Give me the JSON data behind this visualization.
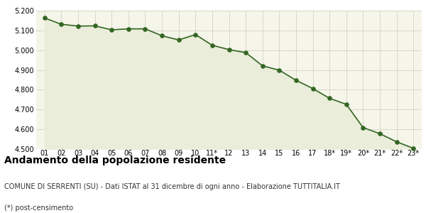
{
  "x_labels": [
    "01",
    "02",
    "03",
    "04",
    "05",
    "06",
    "07",
    "08",
    "09",
    "10",
    "11*",
    "12",
    "13",
    "14",
    "15",
    "16",
    "17",
    "18*",
    "19*",
    "20*",
    "21*",
    "22*",
    "23*"
  ],
  "values": [
    5163,
    5131,
    5122,
    5123,
    5103,
    5108,
    5108,
    5073,
    5052,
    5079,
    5025,
    5003,
    4988,
    4921,
    4899,
    4848,
    4806,
    4757,
    4726,
    4609,
    4578,
    4537,
    4504
  ],
  "ylim": [
    4500,
    5200
  ],
  "yticks": [
    4500,
    4600,
    4700,
    4800,
    4900,
    5000,
    5100,
    5200
  ],
  "line_color": "#336622",
  "fill_color": "#eaedda",
  "marker_color": "#336622",
  "bg_color": "#f5f5ea",
  "grid_color": "#ccccbb",
  "title": "Andamento della popolazione residente",
  "subtitle": "COMUNE DI SERRENTI (SU) - Dati ISTAT al 31 dicembre di ogni anno - Elaborazione TUTTITALIA.IT",
  "footnote": "(*) post-censimento",
  "title_fontsize": 10,
  "subtitle_fontsize": 7,
  "footnote_fontsize": 7,
  "tick_fontsize": 7
}
